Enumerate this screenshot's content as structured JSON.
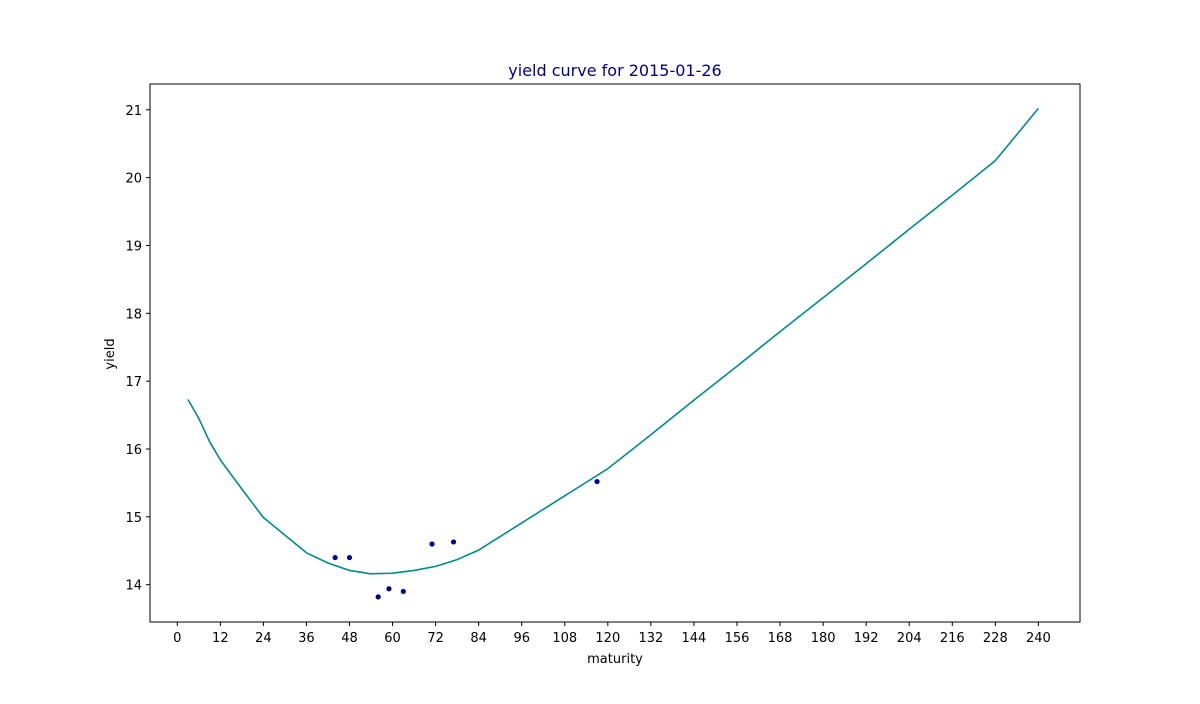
{
  "chart_data": {
    "type": "line",
    "title": "yield curve for 2015-01-26",
    "xlabel": "maturity",
    "ylabel": "yield",
    "xlim": [
      -7.6,
      251.6
    ],
    "ylim": [
      13.45,
      21.38
    ],
    "xticks": [
      0,
      12,
      24,
      36,
      48,
      60,
      72,
      84,
      96,
      108,
      120,
      132,
      144,
      156,
      168,
      180,
      192,
      204,
      216,
      228,
      240
    ],
    "yticks": [
      14,
      15,
      16,
      17,
      18,
      19,
      20,
      21
    ],
    "grid": false,
    "legend": "none",
    "colors": {
      "title": "#00008b",
      "curve": "#008b8b",
      "points": "#00008b",
      "axes": "#000000"
    },
    "series": [
      {
        "kind": "line",
        "x": [
          3,
          6,
          9,
          12,
          18,
          24,
          30,
          36,
          42,
          48,
          54,
          60,
          66,
          72,
          78,
          84,
          90,
          96,
          102,
          108,
          114,
          120,
          132,
          144,
          156,
          168,
          180,
          192,
          204,
          216,
          228,
          240
        ],
        "y": [
          16.73,
          16.45,
          16.11,
          15.84,
          15.41,
          14.99,
          14.73,
          14.47,
          14.32,
          14.21,
          14.16,
          14.17,
          14.21,
          14.27,
          14.37,
          14.51,
          14.71,
          14.91,
          15.11,
          15.31,
          15.51,
          15.71,
          16.21,
          16.72,
          17.22,
          17.73,
          18.23,
          18.73,
          19.24,
          19.74,
          20.25,
          21.02
        ]
      },
      {
        "kind": "scatter",
        "x": [
          44,
          48,
          56,
          59,
          63,
          71,
          77,
          117
        ],
        "y": [
          14.4,
          14.4,
          13.82,
          13.94,
          13.9,
          14.6,
          14.63,
          15.52
        ]
      }
    ]
  }
}
